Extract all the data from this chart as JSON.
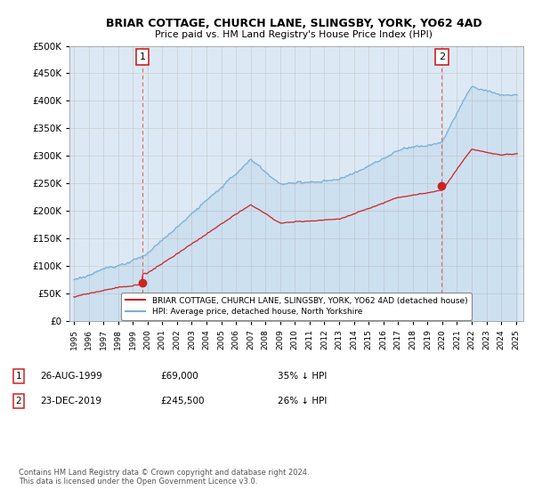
{
  "title": "BRIAR COTTAGE, CHURCH LANE, SLINGSBY, YORK, YO62 4AD",
  "subtitle": "Price paid vs. HM Land Registry's House Price Index (HPI)",
  "ylabel_ticks": [
    "£0",
    "£50K",
    "£100K",
    "£150K",
    "£200K",
    "£250K",
    "£300K",
    "£350K",
    "£400K",
    "£450K",
    "£500K"
  ],
  "ytick_values": [
    0,
    50000,
    100000,
    150000,
    200000,
    250000,
    300000,
    350000,
    400000,
    450000,
    500000
  ],
  "ylim": [
    0,
    500000
  ],
  "xlim_start": 1994.7,
  "xlim_end": 2025.5,
  "hpi_color": "#7bafd4",
  "hpi_fill_color": "#dce9f5",
  "price_color": "#cc2222",
  "vline_color": "#dd4444",
  "purchase1_x": 1999.65,
  "purchase1_y": 69000,
  "purchase2_x": 2019.97,
  "purchase2_y": 245500,
  "legend_house_label": "BRIAR COTTAGE, CHURCH LANE, SLINGSBY, YORK, YO62 4AD (detached house)",
  "legend_hpi_label": "HPI: Average price, detached house, North Yorkshire",
  "annotation1_num": "1",
  "annotation1_date": "26-AUG-1999",
  "annotation1_price": "£69,000",
  "annotation1_hpi": "35% ↓ HPI",
  "annotation2_num": "2",
  "annotation2_date": "23-DEC-2019",
  "annotation2_price": "£245,500",
  "annotation2_hpi": "26% ↓ HPI",
  "footnote": "Contains HM Land Registry data © Crown copyright and database right 2024.\nThis data is licensed under the Open Government Licence v3.0.",
  "bg_color": "#ffffff",
  "grid_color": "#cccccc",
  "box_color": "#cc2222"
}
